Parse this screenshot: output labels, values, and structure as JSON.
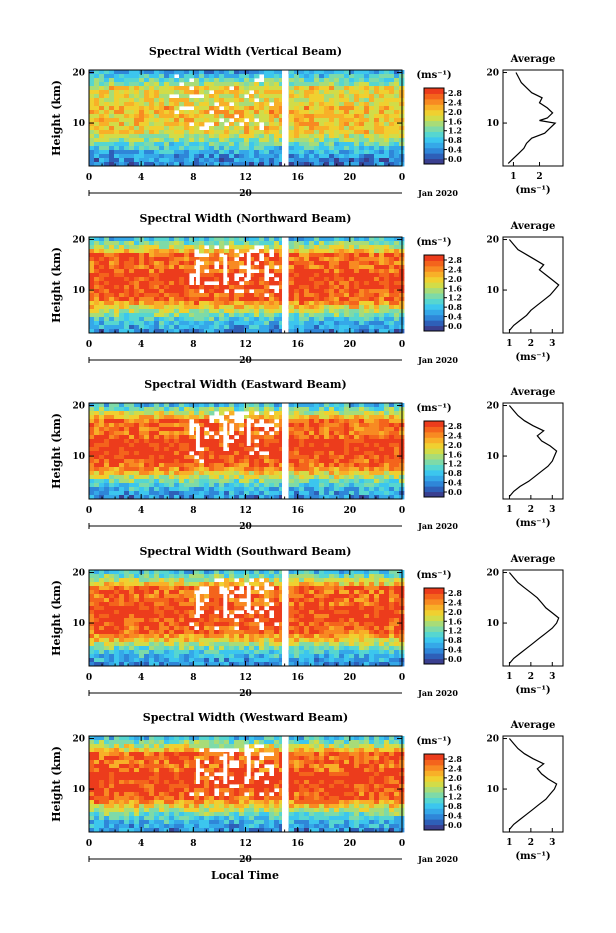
{
  "figure": {
    "xlabel": "Local Time",
    "date_left": "20",
    "date_right": "Jan 2020"
  },
  "palette": [
    "#3a3f8f",
    "#2e5fb8",
    "#2f86d8",
    "#35a8e8",
    "#3cc6ee",
    "#56d6d0",
    "#7edaa8",
    "#a8dc78",
    "#d2dc48",
    "#f0d030",
    "#f8b028",
    "#f88a22",
    "#f4641c",
    "#ec3c1c"
  ],
  "chart_data": [
    {
      "type": "heatmap",
      "title": "Spectral Width (Vertical Beam)",
      "xlabel": "",
      "ylabel": "Height (km)",
      "xticks": [
        "0",
        "4",
        "8",
        "12",
        "16",
        "20",
        "0"
      ],
      "yticks": [
        "10",
        "20"
      ],
      "xlim": [
        0,
        24
      ],
      "ylim": [
        1.5,
        20.5
      ],
      "colorbar": {
        "label": "(ms⁻¹)",
        "ticks": [
          "2.8",
          "2.4",
          "2.0",
          "1.6",
          "1.2",
          "0.8",
          "0.4",
          "0.0"
        ]
      },
      "profile": {
        "title": "Average",
        "xlabel": "(ms⁻¹)",
        "xticks": [
          "1",
          "2"
        ],
        "xlim": [
          0.6,
          2.9
        ],
        "points": [
          [
            0.8,
            2
          ],
          [
            1.0,
            3
          ],
          [
            1.2,
            4
          ],
          [
            1.4,
            5
          ],
          [
            1.5,
            6
          ],
          [
            1.7,
            7
          ],
          [
            2.2,
            8
          ],
          [
            2.4,
            9
          ],
          [
            2.6,
            10
          ],
          [
            2.0,
            10.5
          ],
          [
            2.3,
            11
          ],
          [
            2.5,
            12
          ],
          [
            2.3,
            13
          ],
          [
            2.0,
            14
          ],
          [
            2.1,
            15
          ],
          [
            1.7,
            16
          ],
          [
            1.5,
            17
          ],
          [
            1.3,
            18
          ],
          [
            1.2,
            19
          ],
          [
            1.1,
            20
          ]
        ]
      }
    },
    {
      "type": "heatmap",
      "title": "Spectral Width (Northward Beam)",
      "xlabel": "",
      "ylabel": "Height (km)",
      "xticks": [
        "0",
        "4",
        "8",
        "12",
        "16",
        "20",
        "0"
      ],
      "yticks": [
        "10",
        "20"
      ],
      "xlim": [
        0,
        24
      ],
      "ylim": [
        1.5,
        20.5
      ],
      "colorbar": {
        "label": "(ms⁻¹)",
        "ticks": [
          "2.8",
          "2.4",
          "2.0",
          "1.6",
          "1.2",
          "0.8",
          "0.4",
          "0.0"
        ]
      },
      "profile": {
        "title": "Average",
        "xlabel": "(ms⁻¹)",
        "xticks": [
          "1",
          "2",
          "3"
        ],
        "xlim": [
          0.7,
          3.5
        ],
        "points": [
          [
            1.0,
            2
          ],
          [
            1.2,
            3
          ],
          [
            1.5,
            4
          ],
          [
            1.8,
            5
          ],
          [
            2.0,
            6
          ],
          [
            2.3,
            7
          ],
          [
            2.6,
            8
          ],
          [
            2.9,
            9
          ],
          [
            3.1,
            10
          ],
          [
            3.3,
            11
          ],
          [
            3.0,
            12
          ],
          [
            2.7,
            13
          ],
          [
            2.4,
            14
          ],
          [
            2.6,
            15
          ],
          [
            2.2,
            16
          ],
          [
            1.8,
            17
          ],
          [
            1.4,
            18
          ],
          [
            1.2,
            19
          ],
          [
            1.0,
            20
          ]
        ]
      }
    },
    {
      "type": "heatmap",
      "title": "Spectral Width (Eastward Beam)",
      "xlabel": "",
      "ylabel": "Height (km)",
      "xticks": [
        "0",
        "4",
        "8",
        "12",
        "16",
        "20",
        "0"
      ],
      "yticks": [
        "10",
        "20"
      ],
      "xlim": [
        0,
        24
      ],
      "ylim": [
        1.5,
        20.5
      ],
      "colorbar": {
        "label": "(ms⁻¹)",
        "ticks": [
          "2.8",
          "2.4",
          "2.0",
          "1.6",
          "1.2",
          "0.8",
          "0.4",
          "0.0"
        ]
      },
      "profile": {
        "title": "Average",
        "xlabel": "(ms⁻¹)",
        "xticks": [
          "1",
          "2",
          "3"
        ],
        "xlim": [
          0.7,
          3.5
        ],
        "points": [
          [
            1.0,
            2
          ],
          [
            1.2,
            3
          ],
          [
            1.5,
            4
          ],
          [
            1.9,
            5
          ],
          [
            2.2,
            6
          ],
          [
            2.5,
            7
          ],
          [
            2.8,
            8
          ],
          [
            3.0,
            9
          ],
          [
            3.1,
            10
          ],
          [
            3.2,
            11
          ],
          [
            2.9,
            12
          ],
          [
            2.5,
            13
          ],
          [
            2.3,
            14
          ],
          [
            2.6,
            15
          ],
          [
            2.1,
            16
          ],
          [
            1.7,
            17
          ],
          [
            1.4,
            18
          ],
          [
            1.2,
            19
          ],
          [
            1.0,
            20
          ]
        ]
      }
    },
    {
      "type": "heatmap",
      "title": "Spectral Width (Southward Beam)",
      "xlabel": "",
      "ylabel": "Height (km)",
      "xticks": [
        "0",
        "4",
        "8",
        "12",
        "16",
        "20",
        "0"
      ],
      "yticks": [
        "10",
        "20"
      ],
      "xlim": [
        0,
        24
      ],
      "ylim": [
        1.5,
        20.5
      ],
      "colorbar": {
        "label": "(ms⁻¹)",
        "ticks": [
          "2.8",
          "2.4",
          "2.0",
          "1.6",
          "1.2",
          "0.8",
          "0.4",
          "0.0"
        ]
      },
      "profile": {
        "title": "Average",
        "xlabel": "(ms⁻¹)",
        "xticks": [
          "1",
          "2",
          "3"
        ],
        "xlim": [
          0.7,
          3.5
        ],
        "points": [
          [
            1.0,
            2
          ],
          [
            1.2,
            3
          ],
          [
            1.5,
            4
          ],
          [
            1.8,
            5
          ],
          [
            2.1,
            6
          ],
          [
            2.4,
            7
          ],
          [
            2.7,
            8
          ],
          [
            3.0,
            9
          ],
          [
            3.2,
            10
          ],
          [
            3.3,
            11
          ],
          [
            3.0,
            12
          ],
          [
            2.7,
            13
          ],
          [
            2.5,
            14
          ],
          [
            2.3,
            15
          ],
          [
            2.0,
            16
          ],
          [
            1.7,
            17
          ],
          [
            1.4,
            18
          ],
          [
            1.2,
            19
          ],
          [
            1.0,
            20
          ]
        ]
      }
    },
    {
      "type": "heatmap",
      "title": "Spectral Width (Westward Beam)",
      "xlabel": "",
      "ylabel": "Height (km)",
      "xticks": [
        "0",
        "4",
        "8",
        "12",
        "16",
        "20",
        "0"
      ],
      "yticks": [
        "10",
        "20"
      ],
      "xlim": [
        0,
        24
      ],
      "ylim": [
        1.5,
        20.5
      ],
      "colorbar": {
        "label": "(ms⁻¹)",
        "ticks": [
          "2.8",
          "2.4",
          "2.0",
          "1.6",
          "1.2",
          "0.8",
          "0.4",
          "0.0"
        ]
      },
      "profile": {
        "title": "Average",
        "xlabel": "(ms⁻¹)",
        "xticks": [
          "1",
          "2",
          "3"
        ],
        "xlim": [
          0.7,
          3.5
        ],
        "points": [
          [
            1.0,
            2
          ],
          [
            1.2,
            3
          ],
          [
            1.5,
            4
          ],
          [
            1.8,
            5
          ],
          [
            2.1,
            6
          ],
          [
            2.4,
            7
          ],
          [
            2.7,
            8
          ],
          [
            2.9,
            9
          ],
          [
            3.1,
            10
          ],
          [
            3.2,
            11
          ],
          [
            2.8,
            12
          ],
          [
            2.5,
            13
          ],
          [
            2.3,
            14
          ],
          [
            2.6,
            15
          ],
          [
            2.1,
            16
          ],
          [
            1.7,
            17
          ],
          [
            1.4,
            18
          ],
          [
            1.2,
            19
          ],
          [
            1.0,
            20
          ]
        ]
      }
    }
  ]
}
